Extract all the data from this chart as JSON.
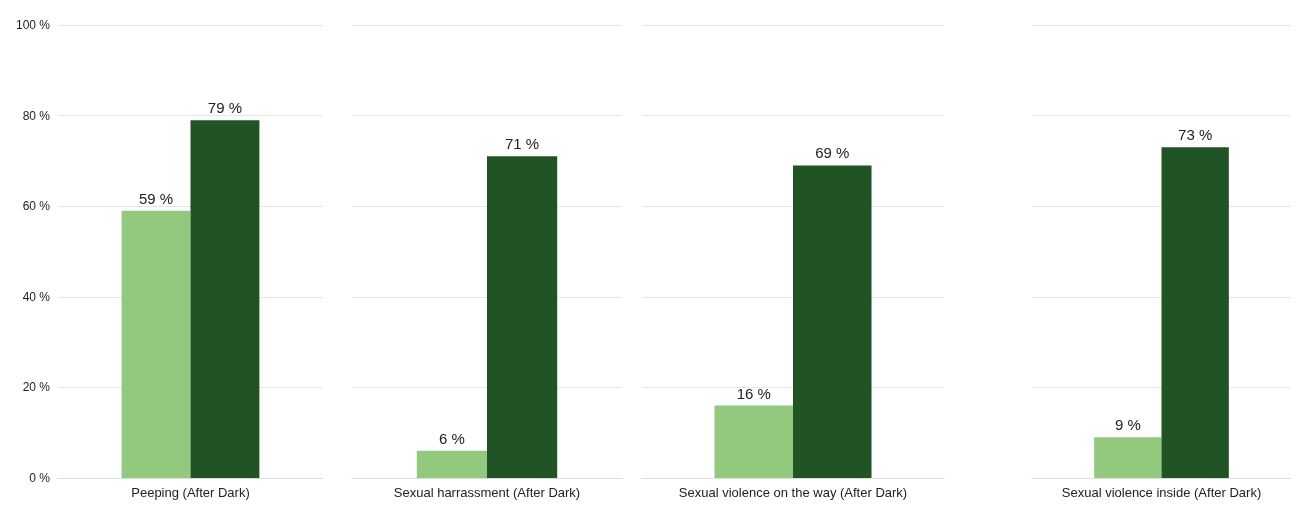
{
  "chart_data": [
    {
      "type": "bar",
      "categories": [
        "Peeping (After Dark)"
      ],
      "series": [
        {
          "color": "#93c97f",
          "values": [
            59
          ],
          "value_labels": [
            "59 %"
          ]
        },
        {
          "color": "#215424",
          "values": [
            79
          ],
          "value_labels": [
            "79 %"
          ]
        }
      ],
      "ylim": [
        0,
        100
      ],
      "yticks": [
        {
          "value": 0,
          "label": "0 %"
        },
        {
          "value": 20,
          "label": "20 %"
        },
        {
          "value": 40,
          "label": "40 %"
        },
        {
          "value": 60,
          "label": "60 %"
        },
        {
          "value": 80,
          "label": "80 %"
        },
        {
          "value": 100,
          "label": "100 %"
        }
      ],
      "grid": "y"
    },
    {
      "type": "bar",
      "categories": [
        "Sexual harrassment (After Dark)"
      ],
      "series": [
        {
          "color": "#93c97f",
          "values": [
            6
          ],
          "value_labels": [
            "6 %"
          ]
        },
        {
          "color": "#215424",
          "values": [
            71
          ],
          "value_labels": [
            "71 %"
          ]
        }
      ],
      "ylim": [
        0,
        100
      ],
      "yticks": [
        0,
        20,
        40,
        60,
        80,
        100
      ],
      "grid": "y",
      "tick_labels": "x"
    },
    {
      "type": "bar",
      "categories": [
        "Sexual violence on the way (After Dark)"
      ],
      "series": [
        {
          "color": "#93c97f",
          "values": [
            16
          ],
          "value_labels": [
            "16 %"
          ]
        },
        {
          "color": "#215424",
          "values": [
            69
          ],
          "value_labels": [
            "69 %"
          ]
        }
      ],
      "ylim": [
        0,
        100
      ],
      "yticks": [
        0,
        20,
        40,
        60,
        80,
        100
      ],
      "grid": "y",
      "tick_labels": "x"
    },
    {
      "type": "bar",
      "categories": [
        "Sexual violence inside (After Dark)"
      ],
      "series": [
        {
          "color": "#93c97f",
          "values": [
            9
          ],
          "value_labels": [
            "9 %"
          ]
        },
        {
          "color": "#215424",
          "values": [
            73
          ],
          "value_labels": [
            "73 %"
          ]
        }
      ],
      "ylim": [
        0,
        100
      ],
      "yticks": [
        0,
        20,
        40,
        60,
        80,
        100
      ],
      "grid": "y",
      "tick_labels": "x"
    }
  ]
}
